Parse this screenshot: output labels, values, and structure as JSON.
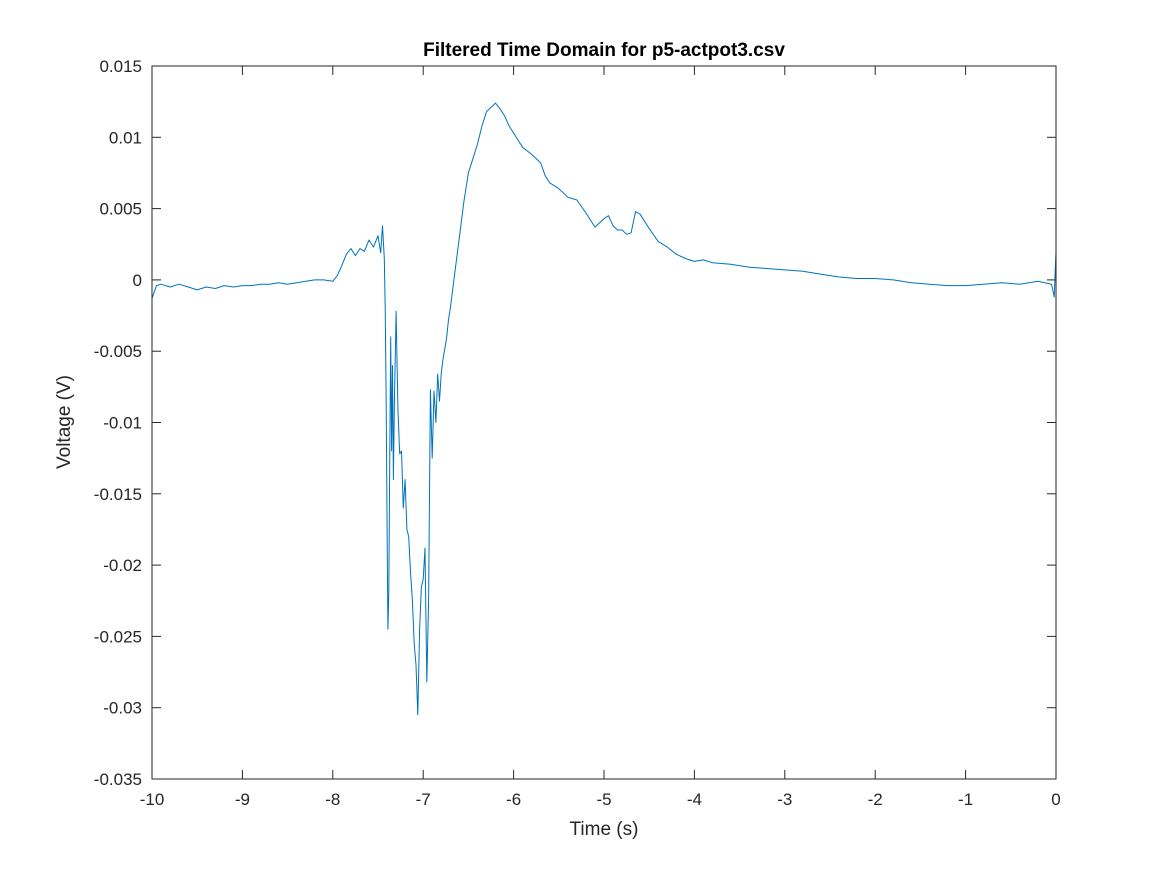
{
  "chart_data": {
    "type": "line",
    "title": "Filtered Time Domain for p5-actpot3.csv",
    "xlabel": "Time (s)",
    "ylabel": "Voltage (V)",
    "xlim": [
      -10,
      0
    ],
    "ylim": [
      -0.035,
      0.015
    ],
    "xticks": [
      -10,
      -9,
      -8,
      -7,
      -6,
      -5,
      -4,
      -3,
      -2,
      -1,
      0
    ],
    "xtick_labels": [
      "-10",
      "-9",
      "-8",
      "-7",
      "-6",
      "-5",
      "-4",
      "-3",
      "-2",
      "-1",
      "0"
    ],
    "yticks": [
      -0.035,
      -0.03,
      -0.025,
      -0.02,
      -0.015,
      -0.01,
      -0.005,
      0,
      0.005,
      0.01,
      0.015
    ],
    "ytick_labels": [
      "-0.035",
      "-0.03",
      "-0.025",
      "-0.02",
      "-0.015",
      "-0.01",
      "-0.005",
      "0",
      "0.005",
      "0.01",
      "0.015"
    ],
    "grid": false,
    "colors": {
      "series": "#0072bd",
      "axes": "#262626"
    },
    "series": [
      {
        "x": [
          -10.0,
          -9.95,
          -9.9,
          -9.8,
          -9.7,
          -9.6,
          -9.5,
          -9.4,
          -9.3,
          -9.2,
          -9.1,
          -9.0,
          -8.9,
          -8.8,
          -8.7,
          -8.6,
          -8.5,
          -8.4,
          -8.3,
          -8.2,
          -8.1,
          -8.0,
          -7.95,
          -7.9,
          -7.85,
          -7.8,
          -7.75,
          -7.7,
          -7.65,
          -7.6,
          -7.55,
          -7.5,
          -7.47,
          -7.45,
          -7.43,
          -7.42,
          -7.41,
          -7.4,
          -7.39,
          -7.38,
          -7.37,
          -7.36,
          -7.35,
          -7.34,
          -7.33,
          -7.32,
          -7.3,
          -7.28,
          -7.26,
          -7.24,
          -7.22,
          -7.2,
          -7.18,
          -7.16,
          -7.14,
          -7.12,
          -7.1,
          -7.08,
          -7.06,
          -7.04,
          -7.02,
          -7.0,
          -6.98,
          -6.96,
          -6.94,
          -6.92,
          -6.9,
          -6.88,
          -6.86,
          -6.84,
          -6.82,
          -6.8,
          -6.78,
          -6.76,
          -6.74,
          -6.72,
          -6.7,
          -6.65,
          -6.6,
          -6.55,
          -6.5,
          -6.45,
          -6.4,
          -6.35,
          -6.3,
          -6.25,
          -6.2,
          -6.15,
          -6.1,
          -6.05,
          -6.0,
          -5.9,
          -5.8,
          -5.7,
          -5.65,
          -5.6,
          -5.5,
          -5.4,
          -5.3,
          -5.2,
          -5.1,
          -5.0,
          -4.95,
          -4.9,
          -4.85,
          -4.8,
          -4.75,
          -4.7,
          -4.65,
          -4.6,
          -4.5,
          -4.4,
          -4.3,
          -4.2,
          -4.1,
          -4.0,
          -3.9,
          -3.8,
          -3.6,
          -3.4,
          -3.2,
          -3.0,
          -2.8,
          -2.6,
          -2.4,
          -2.2,
          -2.0,
          -1.8,
          -1.6,
          -1.4,
          -1.2,
          -1.0,
          -0.8,
          -0.6,
          -0.4,
          -0.2,
          -0.05,
          -0.02,
          0.0
        ],
        "y": [
          -0.0013,
          -0.0004,
          -0.0003,
          -0.0005,
          -0.0003,
          -0.0005,
          -0.0007,
          -0.0005,
          -0.0006,
          -0.0004,
          -0.0005,
          -0.0004,
          -0.0004,
          -0.0003,
          -0.0003,
          -0.0002,
          -0.0003,
          -0.0002,
          -0.0001,
          0.0,
          0.0,
          -0.0001,
          0.0003,
          0.001,
          0.0018,
          0.0022,
          0.0017,
          0.0022,
          0.002,
          0.0028,
          0.0023,
          0.0031,
          0.0019,
          0.0038,
          0.0015,
          -0.002,
          -0.008,
          -0.0165,
          -0.0245,
          -0.022,
          -0.012,
          -0.004,
          -0.012,
          -0.006,
          -0.014,
          -0.009,
          -0.0022,
          -0.009,
          -0.0122,
          -0.012,
          -0.016,
          -0.014,
          -0.0175,
          -0.018,
          -0.0205,
          -0.0225,
          -0.0255,
          -0.027,
          -0.0305,
          -0.0245,
          -0.0215,
          -0.021,
          -0.0188,
          -0.0282,
          -0.0225,
          -0.0077,
          -0.0125,
          -0.0078,
          -0.01,
          -0.0066,
          -0.0085,
          -0.0065,
          -0.0055,
          -0.0048,
          -0.004,
          -0.0028,
          -0.002,
          0.0005,
          0.003,
          0.0055,
          0.0075,
          0.0085,
          0.0095,
          0.0108,
          0.0118,
          0.0121,
          0.0124,
          0.012,
          0.0115,
          0.0108,
          0.0103,
          0.0093,
          0.0088,
          0.0082,
          0.0073,
          0.0068,
          0.0064,
          0.0058,
          0.0056,
          0.0047,
          0.0037,
          0.0043,
          0.0045,
          0.0038,
          0.0035,
          0.0035,
          0.0032,
          0.0033,
          0.0048,
          0.0046,
          0.0036,
          0.0027,
          0.0023,
          0.0018,
          0.0015,
          0.0013,
          0.0014,
          0.0012,
          0.0011,
          0.0009,
          0.0008,
          0.0007,
          0.0006,
          0.0004,
          0.0002,
          0.0001,
          0.0001,
          0.0,
          -0.0002,
          -0.0003,
          -0.0004,
          -0.0004,
          -0.0003,
          -0.0002,
          -0.0003,
          -0.0001,
          -0.0003,
          -0.0012,
          0.002
        ]
      }
    ]
  }
}
